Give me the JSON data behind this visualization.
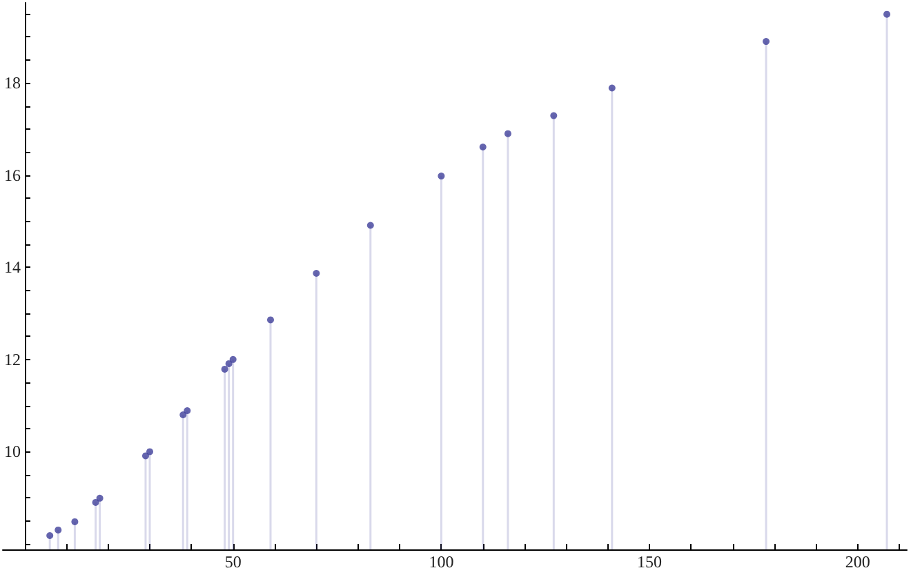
{
  "chart_data": {
    "type": "lollipop",
    "color": "#3f3f9a",
    "x": [
      6,
      8,
      12,
      17,
      18,
      29,
      30,
      38,
      39,
      48,
      49,
      50,
      59,
      70,
      83,
      100,
      110,
      116,
      127,
      141,
      178,
      207
    ],
    "values": [
      8.18,
      8.3,
      8.48,
      8.9,
      8.99,
      9.91,
      10.0,
      10.8,
      10.89,
      11.79,
      11.91,
      12.0,
      12.86,
      13.87,
      14.91,
      15.98,
      16.61,
      16.9,
      17.29,
      17.89,
      18.9,
      19.49
    ],
    "xlim": [
      -5.3,
      211.8
    ],
    "ylim": [
      7.88,
      19.74
    ],
    "xticks": [
      {
        "value": 10,
        "label": null
      },
      {
        "value": 20,
        "label": null
      },
      {
        "value": 30,
        "label": null
      },
      {
        "value": 40,
        "label": null
      },
      50,
      {
        "value": 60,
        "label": null
      },
      {
        "value": 70,
        "label": null
      },
      {
        "value": 80,
        "label": null
      },
      {
        "value": 90,
        "label": null
      },
      100,
      {
        "value": 110,
        "label": null
      },
      {
        "value": 120,
        "label": null
      },
      {
        "value": 130,
        "label": null
      },
      {
        "value": 140,
        "label": null
      },
      150,
      {
        "value": 160,
        "label": null
      },
      {
        "value": 170,
        "label": null
      },
      {
        "value": 180,
        "label": null
      },
      {
        "value": 190,
        "label": null
      },
      200,
      {
        "value": 210,
        "label": null
      }
    ],
    "yticks": [
      {
        "value": 8,
        "label": null
      },
      {
        "value": 8.5,
        "label": null
      },
      {
        "value": 9,
        "label": null
      },
      {
        "value": 9.5,
        "label": null
      },
      10,
      {
        "value": 10.5,
        "label": null
      },
      {
        "value": 11,
        "label": null
      },
      {
        "value": 11.5,
        "label": null
      },
      12,
      {
        "value": 12.5,
        "label": null
      },
      {
        "value": 13,
        "label": null
      },
      {
        "value": 13.5,
        "label": null
      },
      14,
      {
        "value": 14.5,
        "label": null
      },
      {
        "value": 15,
        "label": null
      },
      {
        "value": 15.5,
        "label": null
      },
      16,
      {
        "value": 16.5,
        "label": null
      },
      {
        "value": 17,
        "label": null
      },
      {
        "value": 17.5,
        "label": null
      },
      18,
      {
        "value": 18.5,
        "label": null
      },
      {
        "value": 19,
        "label": null
      },
      {
        "value": 19.5,
        "label": null
      }
    ],
    "grid": false
  }
}
